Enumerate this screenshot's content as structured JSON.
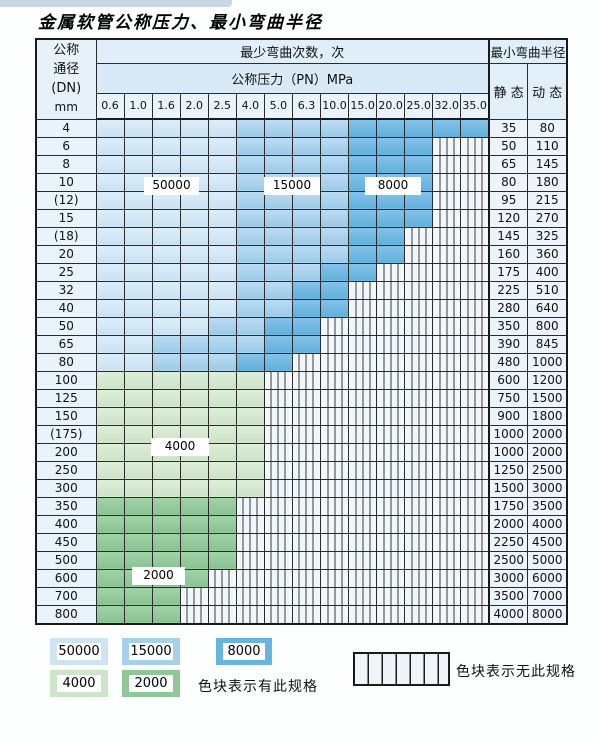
{
  "title": "金属软管公称压力、最小弯曲半径",
  "table": {
    "corner_header": [
      "公称",
      "通径",
      "(DN)",
      "mm"
    ],
    "bend_cycles_header": "最少弯曲次数，次",
    "pressure_header": "公称压力（PN）MPa",
    "radius_header": "最小弯曲半径",
    "static_label": "静 态",
    "dynamic_label": "动 态",
    "pressure_columns": [
      "0.6",
      "1.0",
      "1.6",
      "2.0",
      "2.5",
      "4.0",
      "5.0",
      "6.3",
      "10.0",
      "15.0",
      "20.0",
      "25.0",
      "32.0",
      "35.0"
    ],
    "zone_codes": {
      "A": "50000",
      "B": "15000",
      "C": "8000",
      "D": "4000",
      "E": "2000",
      "-": "none"
    },
    "rows": [
      {
        "dn": "4",
        "cells": "AAAAABBBBCCCCC",
        "static": "35",
        "dynamic": "80"
      },
      {
        "dn": "6",
        "cells": "AAAAABBBBCCC--",
        "static": "50",
        "dynamic": "110"
      },
      {
        "dn": "8",
        "cells": "AAAAABBBBCCC--",
        "static": "65",
        "dynamic": "145"
      },
      {
        "dn": "10",
        "cells": "AAAAABBBBCCC--",
        "static": "80",
        "dynamic": "180"
      },
      {
        "dn": "(12)",
        "cells": "AAAAABBBBCCC--",
        "static": "95",
        "dynamic": "215"
      },
      {
        "dn": "15",
        "cells": "AAAAABBBBCCC--",
        "static": "120",
        "dynamic": "270"
      },
      {
        "dn": "(18)",
        "cells": "AAAAABBBBCC---",
        "static": "145",
        "dynamic": "325"
      },
      {
        "dn": "20",
        "cells": "AAAAABBBBCC---",
        "static": "160",
        "dynamic": "360"
      },
      {
        "dn": "25",
        "cells": "AAAAABBBCC----",
        "static": "175",
        "dynamic": "400"
      },
      {
        "dn": "32",
        "cells": "AAAAABBCC-----",
        "static": "225",
        "dynamic": "510"
      },
      {
        "dn": "40",
        "cells": "AAAAABBCC-----",
        "static": "280",
        "dynamic": "640"
      },
      {
        "dn": "50",
        "cells": "AAAABBCC------",
        "static": "350",
        "dynamic": "800"
      },
      {
        "dn": "65",
        "cells": "AABBBBCC------",
        "static": "390",
        "dynamic": "845"
      },
      {
        "dn": "80",
        "cells": "AABBBCC-------",
        "static": "480",
        "dynamic": "1000"
      },
      {
        "dn": "100",
        "cells": "DDDDDD--------",
        "static": "600",
        "dynamic": "1200"
      },
      {
        "dn": "125",
        "cells": "DDDDDD--------",
        "static": "750",
        "dynamic": "1500"
      },
      {
        "dn": "150",
        "cells": "DDDDDD--------",
        "static": "900",
        "dynamic": "1800"
      },
      {
        "dn": "(175)",
        "cells": "DDDDDD--------",
        "static": "1000",
        "dynamic": "2000"
      },
      {
        "dn": "200",
        "cells": "DDDDDD--------",
        "static": "1000",
        "dynamic": "2000"
      },
      {
        "dn": "250",
        "cells": "DDDDDD--------",
        "static": "1250",
        "dynamic": "2500"
      },
      {
        "dn": "300",
        "cells": "DDDDDD--------",
        "static": "1500",
        "dynamic": "3000"
      },
      {
        "dn": "350",
        "cells": "EEEEE---------",
        "static": "1750",
        "dynamic": "3500"
      },
      {
        "dn": "400",
        "cells": "EEEEE---------",
        "static": "2000",
        "dynamic": "4000"
      },
      {
        "dn": "450",
        "cells": "EEEEE---------",
        "static": "2250",
        "dynamic": "4500"
      },
      {
        "dn": "500",
        "cells": "EEEEE---------",
        "static": "2500",
        "dynamic": "5000"
      },
      {
        "dn": "600",
        "cells": "EEEE----------",
        "static": "3000",
        "dynamic": "6000"
      },
      {
        "dn": "700",
        "cells": "EEE-----------",
        "static": "3500",
        "dynamic": "7000"
      },
      {
        "dn": "800",
        "cells": "EEE-----------",
        "static": "4000",
        "dynamic": "8000"
      }
    ]
  },
  "zone_labels": [
    "50000",
    "15000",
    "8000",
    "4000",
    "2000"
  ],
  "legend": {
    "items": [
      {
        "label": "50000",
        "color": "#cfe4f3"
      },
      {
        "label": "15000",
        "color": "#a6d1ec"
      },
      {
        "label": "8000",
        "color": "#66b5e0"
      },
      {
        "label": "4000",
        "color": "#cde5c9"
      },
      {
        "label": "2000",
        "color": "#8fc897"
      }
    ],
    "has_spec_text": "色块表示有此规格",
    "no_spec_text": "色块表示无此规格"
  },
  "colors": {
    "zone_50000": "#cfe4f3",
    "zone_15000": "#a6d1ec",
    "zone_8000": "#66b5e0",
    "zone_4000": "#cde5c9",
    "zone_2000": "#8fc897",
    "no_spec_bg": "#f2f7fb",
    "header_bg": "#dcecf8",
    "border": "#1a1a1a"
  }
}
